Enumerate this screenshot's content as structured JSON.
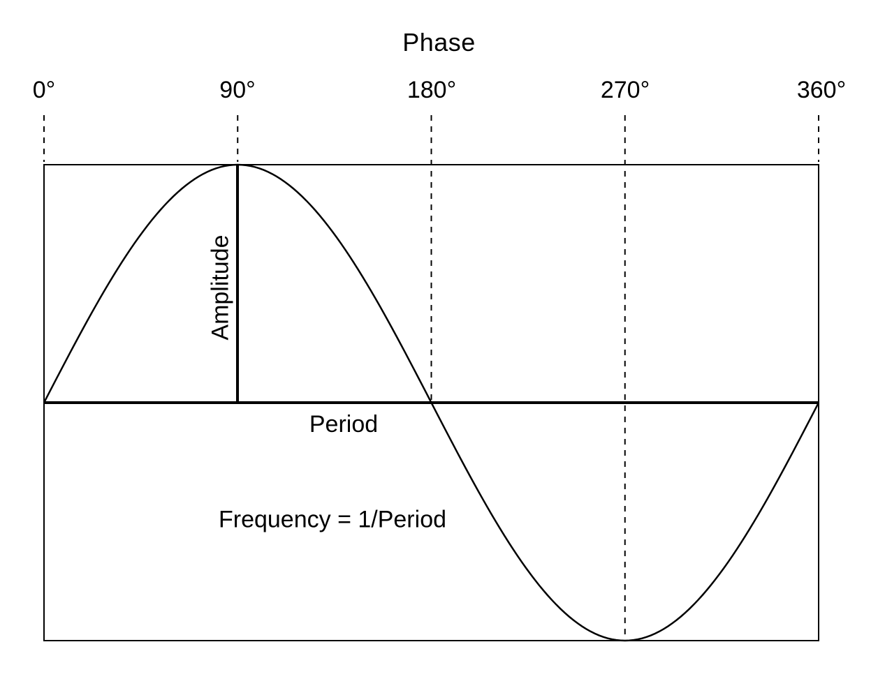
{
  "diagram": {
    "title": "Phase",
    "ticks": [
      {
        "label": "0°",
        "deg": 0,
        "guide_to": "plot-top"
      },
      {
        "label": "90°",
        "deg": 90,
        "guide_to": "plot-top"
      },
      {
        "label": "180°",
        "deg": 180,
        "guide_to": "axis"
      },
      {
        "label": "270°",
        "deg": 270,
        "guide_to": "plot-bottom"
      },
      {
        "label": "360°",
        "deg": 360,
        "guide_to": "plot-top"
      }
    ],
    "labels": {
      "amplitude": "Amplitude",
      "period": "Period",
      "frequency": "Frequency = 1/Period"
    },
    "wave": {
      "type": "sine",
      "cycles": 1,
      "start_deg": 0,
      "end_deg": 360,
      "peak_deg": 90,
      "trough_deg": 270
    },
    "colors": {
      "stroke": "#000000",
      "background": "#ffffff"
    }
  }
}
